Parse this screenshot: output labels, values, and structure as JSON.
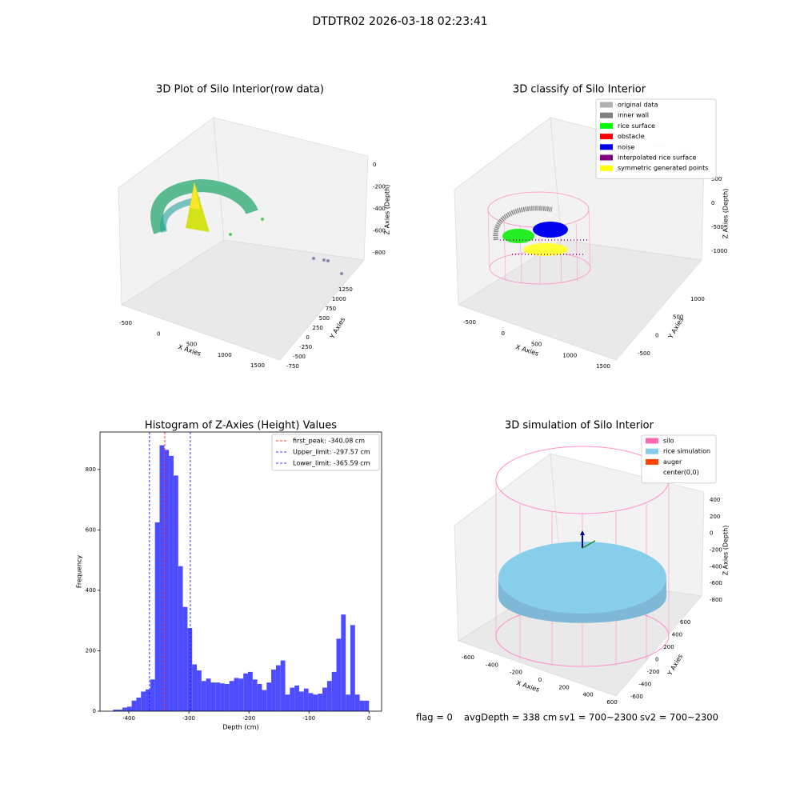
{
  "suptitle": "DTDTR02 2026-03-18 02:23:41",
  "chart_data": [
    {
      "type": "scatter3d",
      "title": "3D Plot of Silo Interior(row data)",
      "xlabel": "X Axies",
      "ylabel": "Y Axies",
      "zlabel": "Z Axies (Depth)",
      "xticks": [
        -500,
        0,
        500,
        1000,
        1500
      ],
      "yticks": [
        -750,
        -500,
        -250,
        0,
        250,
        500,
        750,
        1000,
        1250
      ],
      "zticks": [
        -800,
        -600,
        -400,
        -200,
        0
      ]
    },
    {
      "type": "scatter3d",
      "title": "3D classify of Silo Interior",
      "xlabel": "X Axies",
      "ylabel": "Y Axies",
      "zlabel": "Z Axies (Depth)",
      "xticks": [
        -500,
        0,
        500,
        1000,
        1500
      ],
      "yticks": [
        -500,
        0,
        500,
        1000
      ],
      "zticks": [
        -1000,
        -500,
        0,
        500
      ],
      "legend": [
        {
          "name": "original data",
          "color": "#b0b0b0"
        },
        {
          "name": "inner wall",
          "color": "#808080"
        },
        {
          "name": "rice surface",
          "color": "#00ff00"
        },
        {
          "name": "obstacle",
          "color": "#ff0000"
        },
        {
          "name": "noise",
          "color": "#0000ee"
        },
        {
          "name": "interpolated rice surface",
          "color": "#800080"
        },
        {
          "name": "symmetric generated points",
          "color": "#ffff00"
        }
      ]
    },
    {
      "type": "histogram",
      "title": "Histogram of Z-Axies (Height) Values",
      "xlabel": "Depth (cm)",
      "ylabel": "Frequency",
      "color": "#4d4dff",
      "bins": [
        -426.25,
        -418.5,
        -410.75,
        -403,
        -395.25,
        -387.5,
        -379.75,
        -372,
        -364.25,
        -356.5,
        -348.75,
        -341,
        -333.25,
        -325.5,
        -317.75,
        -310,
        -302.25,
        -294.5,
        -286.75,
        -279,
        -271.25,
        -263.5,
        -255.75,
        -248,
        -240.25,
        -232.5,
        -224.75,
        -217,
        -209.25,
        -201.5,
        -193.75,
        -186,
        -178.25,
        -170.5,
        -162.75,
        -155,
        -147.25,
        -139.5,
        -131.75,
        -124,
        -116.25,
        -108.5,
        -100.75,
        -93,
        -85.25,
        -77.5,
        -69.75,
        -62,
        -54.25,
        -46.5,
        -38.75,
        -31,
        -23.25,
        -15.5,
        -7.75,
        0
      ],
      "counts": [
        5,
        5,
        12,
        15,
        35,
        45,
        65,
        72,
        105,
        625,
        880,
        865,
        845,
        780,
        480,
        345,
        275,
        155,
        135,
        100,
        108,
        95,
        95,
        92,
        90,
        100,
        110,
        108,
        125,
        130,
        105,
        90,
        70,
        95,
        138,
        152,
        168,
        55,
        78,
        85,
        65,
        75,
        60,
        55,
        58,
        78,
        100,
        130,
        240,
        320,
        55,
        285,
        55,
        35,
        35
      ],
      "xlim": [
        -448,
        21
      ],
      "ylim": [
        0,
        924
      ],
      "xticks": [
        -400,
        -300,
        -200,
        -100,
        0
      ],
      "yticks": [
        0,
        200,
        400,
        600,
        800
      ],
      "lines": [
        {
          "label": "first_peak: -340.08 cm",
          "value": -340.08,
          "color": "#ff0000"
        },
        {
          "label": "Upper_limit: -297.57 cm",
          "value": -297.57,
          "color": "#0000ff"
        },
        {
          "label": "Lower_limit: -365.59 cm",
          "value": -365.59,
          "color": "#0000ff"
        }
      ]
    },
    {
      "type": "scatter3d",
      "title": "3D simulation of Silo Interior",
      "xlabel": "X Axies",
      "ylabel": "Y Axies",
      "zlabel": "Z Axies (Depth)",
      "xticks": [
        -600,
        -400,
        -200,
        0,
        200,
        400,
        600
      ],
      "yticks": [
        -600,
        -400,
        -200,
        0,
        200,
        400,
        600
      ],
      "zticks": [
        -800,
        -600,
        -400,
        -200,
        0,
        200,
        400
      ],
      "legend": [
        {
          "name": "silo",
          "color": "#ff69b4"
        },
        {
          "name": "rice simulation",
          "color": "#87ceeb"
        },
        {
          "name": "auger",
          "color": "#ff4500"
        },
        {
          "name": "center(0,0)",
          "color": "#ffffff"
        }
      ]
    }
  ],
  "status": [
    "flag = 0",
    "avgDepth = 338 cm",
    "sv1 = 700~2300",
    "sv2 = 700~2300"
  ]
}
